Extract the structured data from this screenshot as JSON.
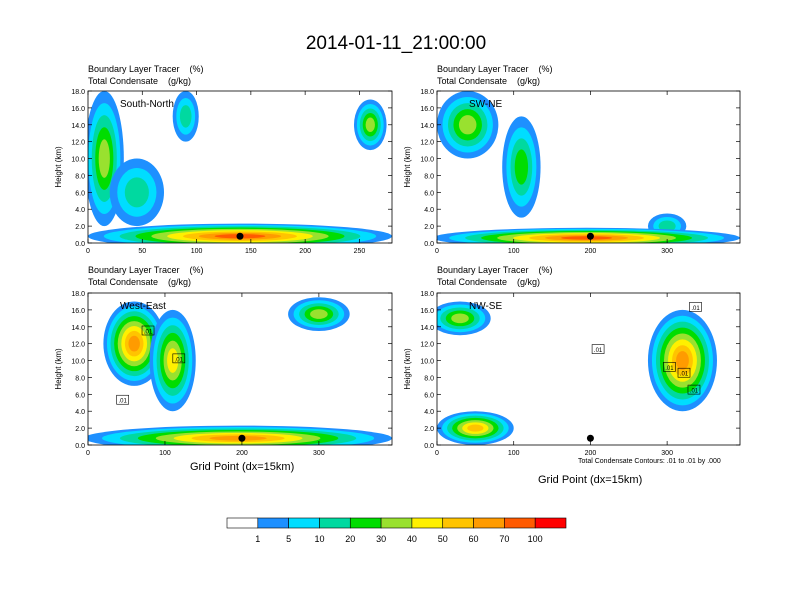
{
  "title": "2014-01-11_21:00:00",
  "note": "Total Condensate Contours: .01 to .01 by .000",
  "colors": {
    "bins": [
      "#ffffff",
      "#1e90ff",
      "#00ddff",
      "#00d9a0",
      "#00dd00",
      "#99e12f",
      "#fff000",
      "#ffc400",
      "#ff9b00",
      "#ff5a00",
      "#ff0000"
    ],
    "contour": "#000000"
  },
  "colorbar": {
    "labels": [
      "1",
      "5",
      "10",
      "20",
      "30",
      "40",
      "50",
      "60",
      "70",
      "100"
    ]
  },
  "chart_data": [
    {
      "type": "heatmap",
      "panel_label": "South-North",
      "field_title": "Boundary Layer Tracer    (%)",
      "contour_title": "Total Condensate    (g/kg)",
      "ylabel": "Height (km)",
      "xlabel": "",
      "xlim": [
        0,
        280
      ],
      "xticks": [
        "0",
        "50",
        "100",
        "150",
        "200",
        "250"
      ],
      "ylim": [
        0,
        18
      ],
      "yticks": [
        "0.0",
        "2.0",
        "4.0",
        "6.0",
        "8.0",
        "10.0",
        "12.0",
        "14.0",
        "16.0",
        "18.0"
      ],
      "marker_x": 140,
      "plumes": [
        {
          "x": 15,
          "z": 10,
          "hw": 18,
          "hh": 8,
          "level": 5
        },
        {
          "x": 45,
          "z": 6,
          "hw": 25,
          "hh": 4,
          "level": 3
        },
        {
          "x": 90,
          "z": 15,
          "hw": 12,
          "hh": 3,
          "level": 3
        },
        {
          "x": 260,
          "z": 14,
          "hw": 15,
          "hh": 3,
          "level": 5
        },
        {
          "x": 140,
          "z": 0.8,
          "hw": 140,
          "hh": 1.5,
          "level": 9
        }
      ]
    },
    {
      "type": "heatmap",
      "panel_label": "SW-NE",
      "field_title": "Boundary Layer Tracer    (%)",
      "contour_title": "Total Condensate    (g/kg)",
      "ylabel": "Height (km)",
      "xlabel": "",
      "xlim": [
        0,
        395
      ],
      "xticks": [
        "0",
        "100",
        "200",
        "300"
      ],
      "ylim": [
        0,
        18
      ],
      "yticks": [
        "0.0",
        "2.0",
        "4.0",
        "6.0",
        "8.0",
        "10.0",
        "12.0",
        "14.0",
        "16.0",
        "18.0"
      ],
      "marker_x": 200,
      "plumes": [
        {
          "x": 40,
          "z": 14,
          "hw": 40,
          "hh": 4,
          "level": 5
        },
        {
          "x": 110,
          "z": 9,
          "hw": 25,
          "hh": 6,
          "level": 4
        },
        {
          "x": 300,
          "z": 2,
          "hw": 25,
          "hh": 1.5,
          "level": 3
        },
        {
          "x": 195,
          "z": 0.6,
          "hw": 200,
          "hh": 1.2,
          "level": 9
        }
      ]
    },
    {
      "type": "heatmap",
      "panel_label": "West-East",
      "field_title": "Boundary Layer Tracer    (%)",
      "contour_title": "Total Condensate    (g/kg)",
      "ylabel": "Height (km)",
      "xlabel": "Grid Point (dx=15km)",
      "xlim": [
        0,
        395
      ],
      "xticks": [
        "0",
        "100",
        "200",
        "300"
      ],
      "ylim": [
        0,
        18
      ],
      "yticks": [
        "0.0",
        "2.0",
        "4.0",
        "6.0",
        "8.0",
        "10.0",
        "12.0",
        "14.0",
        "16.0",
        "18.0"
      ],
      "marker_x": 200,
      "contour_labels": [
        {
          "x": 78,
          "z": 13.5,
          "text": ".01"
        },
        {
          "x": 118,
          "z": 10.2,
          "text": ".01"
        },
        {
          "x": 45,
          "z": 5.3,
          "text": ".01"
        }
      ],
      "plumes": [
        {
          "x": 60,
          "z": 12,
          "hw": 40,
          "hh": 5,
          "level": 8
        },
        {
          "x": 110,
          "z": 10,
          "hw": 30,
          "hh": 6,
          "level": 6
        },
        {
          "x": 300,
          "z": 15.5,
          "hw": 40,
          "hh": 2,
          "level": 5
        },
        {
          "x": 195,
          "z": 0.8,
          "hw": 200,
          "hh": 1.5,
          "level": 8
        }
      ]
    },
    {
      "type": "heatmap",
      "panel_label": "NW-SE",
      "field_title": "Boundary Layer Tracer    (%)",
      "contour_title": "Total Condensate    (g/kg)",
      "ylabel": "Height (km)",
      "xlabel": "Grid Point (dx=15km)",
      "xlim": [
        0,
        395
      ],
      "xticks": [
        "0",
        "100",
        "200",
        "300"
      ],
      "ylim": [
        0,
        18
      ],
      "yticks": [
        "0.0",
        "2.0",
        "4.0",
        "6.0",
        "8.0",
        "10.0",
        "12.0",
        "14.0",
        "16.0",
        "18.0"
      ],
      "marker_x": 200,
      "contour_labels": [
        {
          "x": 210,
          "z": 11.3,
          "text": ".01"
        },
        {
          "x": 337,
          "z": 16.3,
          "text": ".01"
        },
        {
          "x": 303,
          "z": 9.2,
          "text": ".01"
        },
        {
          "x": 322,
          "z": 8.5,
          "text": ".01"
        },
        {
          "x": 335,
          "z": 6.5,
          "text": ".01"
        }
      ],
      "plumes": [
        {
          "x": 50,
          "z": 2,
          "hw": 50,
          "hh": 2,
          "level": 7
        },
        {
          "x": 320,
          "z": 10,
          "hw": 45,
          "hh": 6,
          "level": 8
        },
        {
          "x": 30,
          "z": 15,
          "hw": 40,
          "hh": 2,
          "level": 5
        }
      ]
    }
  ]
}
